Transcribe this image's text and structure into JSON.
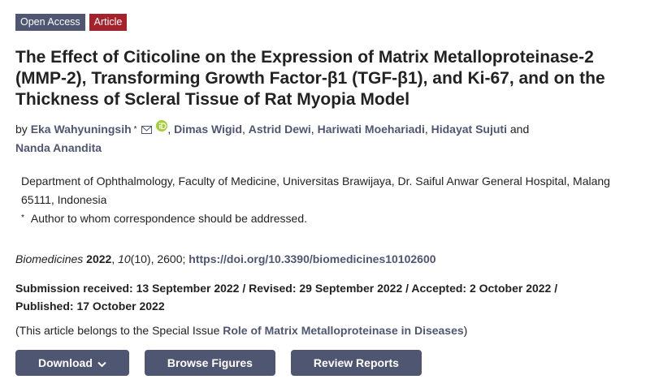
{
  "badges": [
    "Open Access",
    "Article"
  ],
  "title": "The Effect of Citicoline on the Expression of Matrix Metalloproteinase-2 (MMP-2), Transforming Growth Factor-β1 (TGF-β1), and Ki-67, and on the Thickness of Scleral Tissue of Rat Myopia Model",
  "byline": {
    "prefix": "by",
    "authors": [
      "Eka Wahyuningsih",
      "Dimas Wigid",
      "Astrid Dewi",
      "Hariwati Moehariadi",
      "Hidayat Sujuti",
      "Nanda Anandita"
    ],
    "separator": ",",
    "conjunction": "and",
    "corresponding_mark": "*"
  },
  "affiliation": "Department of Ophthalmology, Faculty of Medicine, Universitas Brawijaya, Dr. Saiful Anwar General Hospital, Malang 65111, Indonesia",
  "correspondence_note": "Author to whom correspondence should be addressed.",
  "citation": [
    {
      "text": "Biomedicines",
      "style": "italic"
    },
    {
      "text": " 2022",
      "style": "bold"
    },
    {
      "text": ", ",
      "style": "plain"
    },
    {
      "text": "10",
      "style": "italic"
    },
    {
      "text": "(10), 2600; ",
      "style": "plain"
    },
    {
      "text": "https://doi.org/10.3390/biomedicines10102600",
      "style": "link"
    }
  ],
  "dates": "Submission received: 13 September 2022 / Revised: 29 September 2022 / Accepted: 2 October 2022 / Published: 17 October 2022",
  "special_issue": {
    "prefix": "(This article belongs to the Special Issue",
    "link": "Role of Matrix Metalloproteinase in Diseases",
    "suffix": ")"
  },
  "buttons": [
    "Download",
    "Browse Figures",
    "Review Reports"
  ]
}
